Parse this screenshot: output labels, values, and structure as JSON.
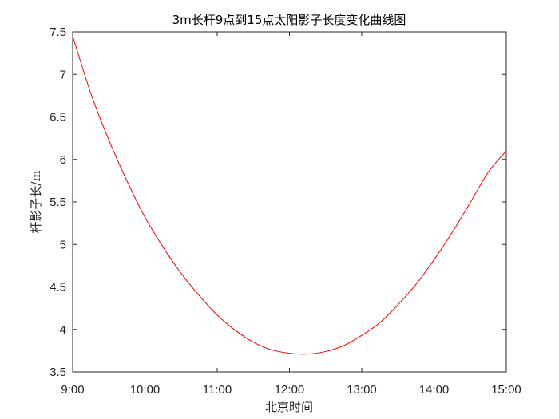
{
  "chart_data": {
    "type": "line",
    "title": "3m长杆9点到15点太阳影子长度变化曲线图",
    "xlabel": "北京时间",
    "ylabel": "杆影子长/m",
    "xlim": [
      9,
      15
    ],
    "ylim": [
      3.5,
      7.5
    ],
    "x_ticks": [
      9,
      10,
      11,
      12,
      13,
      14,
      15
    ],
    "x_tick_labels": [
      "9:00",
      "10:00",
      "11:00",
      "12:00",
      "13:00",
      "14:00",
      "15:00"
    ],
    "y_ticks": [
      3.5,
      4,
      4.5,
      5,
      5.5,
      6,
      6.5,
      7,
      7.5
    ],
    "y_tick_labels": [
      "3.5",
      "4",
      "4.5",
      "5",
      "5.5",
      "6",
      "6.5",
      "7",
      "7.5"
    ],
    "grid": false,
    "series": [
      {
        "color": "#ff0000",
        "x": [
          9.0,
          9.25,
          9.5,
          9.75,
          10.0,
          10.25,
          10.5,
          10.75,
          11.0,
          11.25,
          11.5,
          11.75,
          12.0,
          12.25,
          12.5,
          12.75,
          13.0,
          13.25,
          13.5,
          13.75,
          14.0,
          14.25,
          14.5,
          14.75,
          15.0
        ],
        "y": [
          7.45,
          6.78,
          6.23,
          5.75,
          5.32,
          4.97,
          4.66,
          4.4,
          4.17,
          3.99,
          3.85,
          3.76,
          3.72,
          3.71,
          3.74,
          3.81,
          3.93,
          4.08,
          4.29,
          4.53,
          4.82,
          5.14,
          5.49,
          5.85,
          6.1
        ]
      }
    ]
  }
}
